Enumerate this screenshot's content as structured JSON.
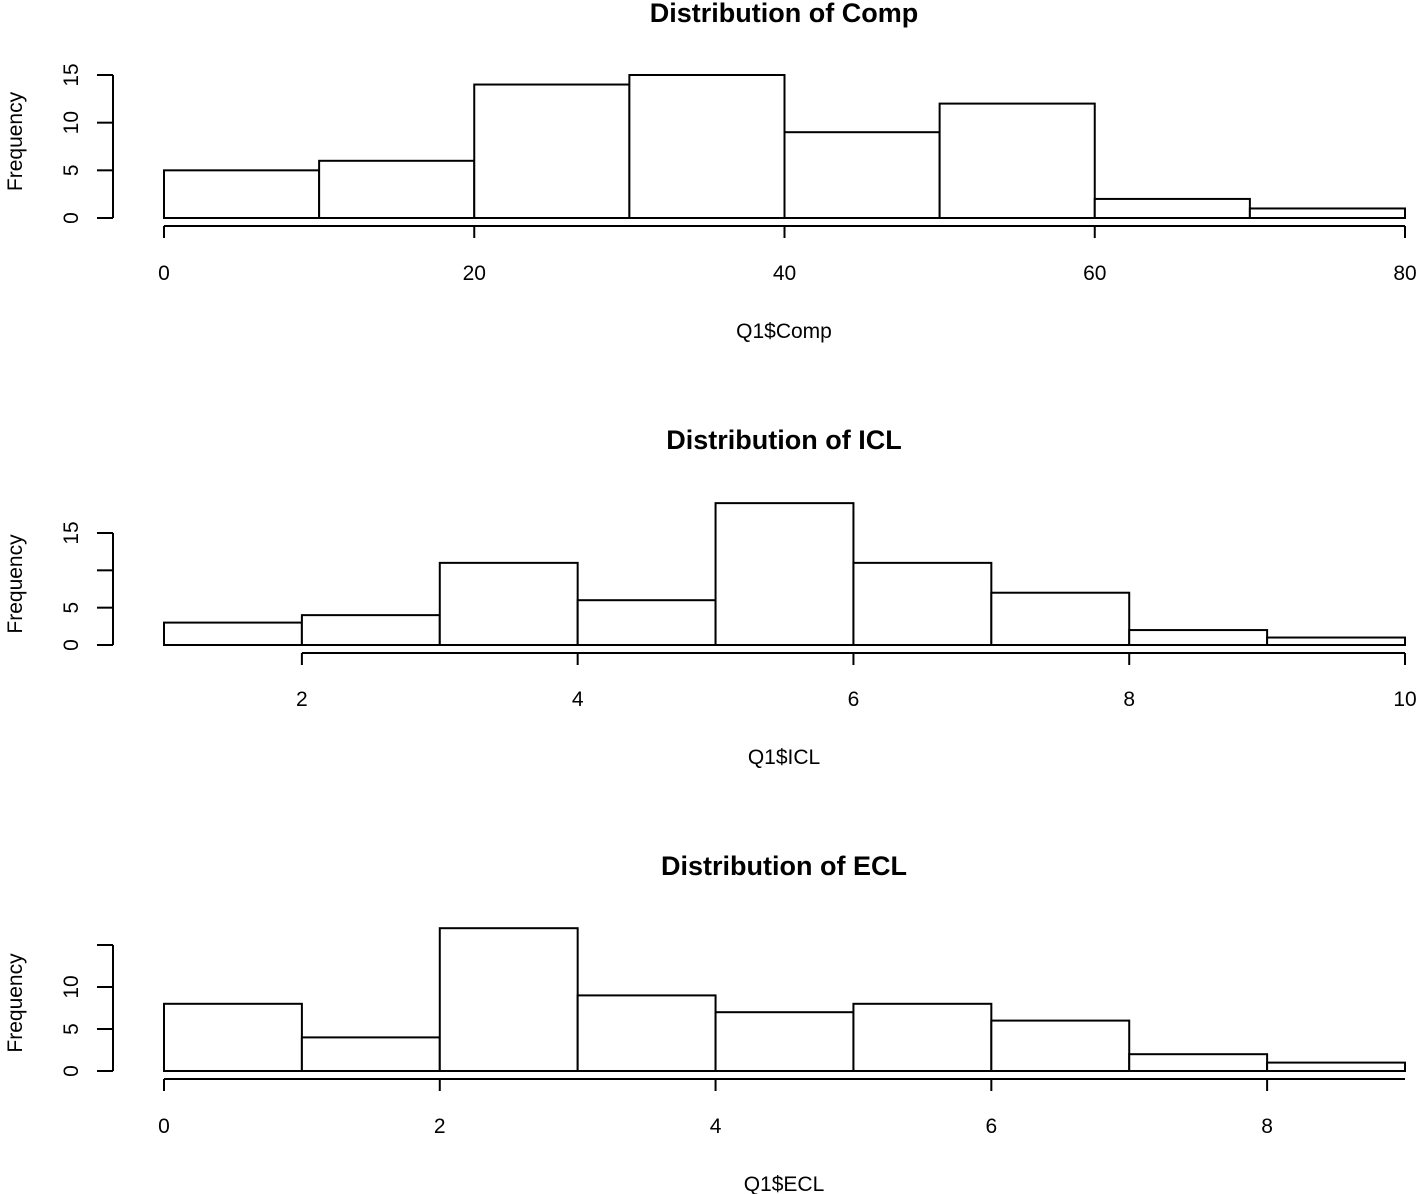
{
  "chart_data": [
    {
      "type": "bar",
      "title": "Distribution of Comp",
      "xlabel": "Q1$Comp",
      "ylabel": "Frequency",
      "bin_edges": [
        0,
        10,
        20,
        30,
        40,
        50,
        60,
        70,
        80
      ],
      "values": [
        5,
        6,
        14,
        15,
        9,
        12,
        2,
        1
      ],
      "xlim": [
        0,
        80
      ],
      "xticks": [
        0,
        20,
        40,
        60,
        80
      ],
      "yticks": [
        0,
        5,
        10,
        15
      ],
      "ytick_labels": [
        "0",
        "5",
        "10",
        "15"
      ],
      "ylim": [
        0,
        15
      ]
    },
    {
      "type": "bar",
      "title": "Distribution of ICL",
      "xlabel": "Q1$ICL",
      "ylabel": "Frequency",
      "bin_edges": [
        1,
        2,
        3,
        4,
        5,
        6,
        7,
        8,
        9,
        10
      ],
      "values": [
        3,
        4,
        11,
        6,
        19,
        11,
        7,
        2,
        1
      ],
      "xlim": [
        1,
        10
      ],
      "xticks": [
        2,
        4,
        6,
        8,
        10
      ],
      "yticks": [
        0,
        5,
        10,
        15
      ],
      "ytick_labels": [
        "0",
        "5",
        "",
        "15"
      ],
      "ylim": [
        0,
        15
      ]
    },
    {
      "type": "bar",
      "title": "Distribution of ECL",
      "xlabel": "Q1$ECL",
      "ylabel": "Frequency",
      "bin_edges": [
        0,
        1,
        2,
        3,
        4,
        5,
        6,
        7,
        8,
        9
      ],
      "values": [
        8,
        4,
        17,
        9,
        7,
        8,
        6,
        2,
        1
      ],
      "xlim": [
        0,
        9
      ],
      "xticks": [
        0,
        2,
        4,
        6,
        8
      ],
      "yticks": [
        0,
        5,
        10,
        15
      ],
      "ytick_labels": [
        "0",
        "5",
        "10",
        ""
      ],
      "ylim": [
        0,
        15
      ]
    }
  ]
}
